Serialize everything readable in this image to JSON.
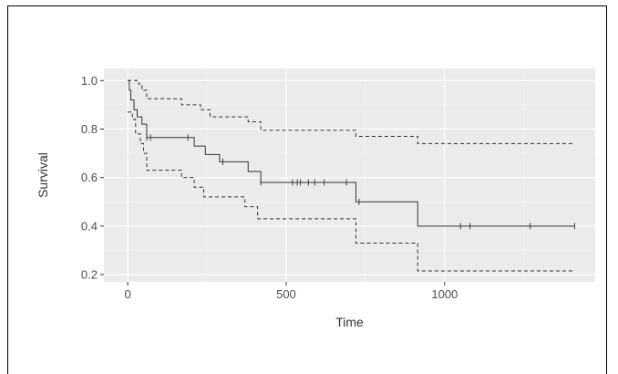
{
  "chart_data": {
    "type": "line",
    "title": "",
    "xlabel": "Time",
    "ylabel": "Survival",
    "xlim": [
      -75,
      1475
    ],
    "ylim": [
      0.17,
      1.05
    ],
    "x_ticks": [
      0,
      500,
      1000
    ],
    "x_tick_labels": [
      "0",
      "500",
      "1000"
    ],
    "y_ticks": [
      0.2,
      0.4,
      0.6,
      0.8,
      1.0
    ],
    "y_tick_labels": [
      "0.2",
      "0.4",
      "0.6",
      "0.8",
      "1.0"
    ],
    "grid": true,
    "background_color": "#ebebeb",
    "series": [
      {
        "role": "estimate",
        "style": "solid",
        "color": "#333333",
        "steps": [
          [
            0,
            1.0
          ],
          [
            5,
            0.96
          ],
          [
            10,
            0.92
          ],
          [
            20,
            0.88
          ],
          [
            30,
            0.85
          ],
          [
            45,
            0.82
          ],
          [
            60,
            0.765
          ],
          [
            160,
            0.765
          ],
          [
            210,
            0.73
          ],
          [
            245,
            0.695
          ],
          [
            290,
            0.665
          ],
          [
            380,
            0.625
          ],
          [
            420,
            0.58
          ],
          [
            710,
            0.58
          ],
          [
            720,
            0.5
          ],
          [
            910,
            0.5
          ],
          [
            915,
            0.4
          ],
          [
            1410,
            0.4
          ]
        ],
        "censor_x": [
          60,
          72,
          190,
          300,
          420,
          520,
          535,
          545,
          570,
          590,
          620,
          690,
          730,
          1050,
          1080,
          1270,
          1410
        ]
      },
      {
        "role": "upper-confidence",
        "style": "dashed",
        "color": "#333333",
        "steps": [
          [
            0,
            1.0
          ],
          [
            35,
            0.985
          ],
          [
            45,
            0.96
          ],
          [
            60,
            0.925
          ],
          [
            160,
            0.925
          ],
          [
            170,
            0.9
          ],
          [
            230,
            0.88
          ],
          [
            260,
            0.85
          ],
          [
            380,
            0.83
          ],
          [
            420,
            0.795
          ],
          [
            710,
            0.795
          ],
          [
            720,
            0.77
          ],
          [
            910,
            0.77
          ],
          [
            915,
            0.74
          ],
          [
            1410,
            0.74
          ]
        ]
      },
      {
        "role": "lower-confidence",
        "style": "dashed",
        "color": "#333333",
        "steps": [
          [
            0,
            0.87
          ],
          [
            15,
            0.84
          ],
          [
            25,
            0.78
          ],
          [
            40,
            0.74
          ],
          [
            50,
            0.7
          ],
          [
            60,
            0.63
          ],
          [
            160,
            0.63
          ],
          [
            170,
            0.6
          ],
          [
            210,
            0.56
          ],
          [
            240,
            0.52
          ],
          [
            370,
            0.48
          ],
          [
            410,
            0.43
          ],
          [
            710,
            0.43
          ],
          [
            720,
            0.33
          ],
          [
            910,
            0.33
          ],
          [
            915,
            0.215
          ],
          [
            1410,
            0.215
          ]
        ]
      }
    ]
  }
}
